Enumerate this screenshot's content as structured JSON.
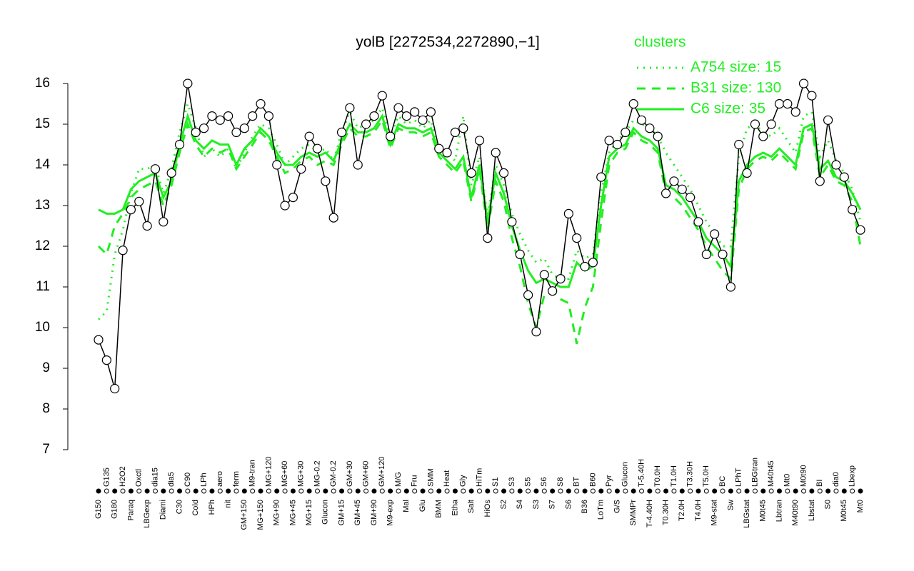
{
  "chart_data": {
    "type": "line",
    "title": "yolB [2272534,2272890,−1]",
    "legend_title": "clusters",
    "legend": "top-right",
    "categories": [
      "G150",
      "G135",
      "G180",
      "H2O2",
      "Paraq",
      "Oxctl",
      "LBGexp",
      "dia15",
      "Diami",
      "dia5",
      "C30",
      "C90",
      "Cold",
      "LPh",
      "HPh",
      "aero",
      "nit",
      "ferm",
      "GM+150",
      "M9-tran",
      "MG+150",
      "MG+120",
      "MG+90",
      "MG+60",
      "MG+45",
      "MG+30",
      "MG+15",
      "MG-0.2",
      "Glucon",
      "GM-0.2",
      "GM+15",
      "GM+30",
      "GM+45",
      "GM+60",
      "GM+90",
      "GM+120",
      "M9-exp",
      "M/G",
      "Mal",
      "Fru",
      "Glu",
      "SMM",
      "BMM",
      "Heat",
      "Etha",
      "Gly",
      "Salt",
      "HiTm",
      "HiOs",
      "S1",
      "S2",
      "S3",
      "S4",
      "S5",
      "S3",
      "S6",
      "S7",
      "S8",
      "S6",
      "BT",
      "B36",
      "B60",
      "LoTm",
      "Pyr",
      "G/S",
      "Glucon",
      "SMMPr",
      "T-5.40H",
      "T-4.40H",
      "T0.0H",
      "T0.30H",
      "T1.0H",
      "T2.0H",
      "T3.30H",
      "T4.0H",
      "T5.0H",
      "M9-stat",
      "BC",
      "Sw",
      "LPhT",
      "LBGstat",
      "LBGtran",
      "M0t45",
      "M40t45",
      "Lbtran",
      "Mt0",
      "M40t90",
      "M0t90",
      "Lbstat",
      "BI",
      "S0",
      "dia0",
      "M0t45",
      "Lbexp",
      "Mt0"
    ],
    "values": [
      9.7,
      9.2,
      8.5,
      11.9,
      12.9,
      13.1,
      12.5,
      13.9,
      12.6,
      13.8,
      14.5,
      16.0,
      14.8,
      14.9,
      15.2,
      15.1,
      15.2,
      14.8,
      14.9,
      15.2,
      15.5,
      15.2,
      14.0,
      13.0,
      13.2,
      13.9,
      14.7,
      14.4,
      13.6,
      12.7,
      14.8,
      15.4,
      14.0,
      15.0,
      15.2,
      15.7,
      14.7,
      15.4,
      15.2,
      15.3,
      15.1,
      15.3,
      14.4,
      14.3,
      14.8,
      14.9,
      13.8,
      14.6,
      12.2,
      14.3,
      13.8,
      12.6,
      11.8,
      10.8,
      9.9,
      11.3,
      10.9,
      11.2,
      12.8,
      12.2,
      11.5,
      11.6,
      13.7,
      14.6,
      14.5,
      14.8,
      15.5,
      15.1,
      14.9,
      14.7,
      13.3,
      13.6,
      13.4,
      13.2,
      12.6,
      11.8,
      12.3,
      11.8,
      11.0,
      14.5,
      13.8,
      15.0,
      14.7,
      15.0,
      15.5,
      15.5,
      15.3,
      16.0,
      15.7,
      13.6,
      15.1,
      14.0,
      13.7,
      12.9,
      12.4
    ],
    "color": "#000000",
    "marker_fill": "#ffffff",
    "series": [
      {
        "name": "A754 size: 15",
        "color": "#22ee22",
        "line_style": "dotted",
        "values": [
          10.2,
          10.4,
          11.8,
          12.4,
          13.3,
          13.9,
          13.9,
          14.0,
          13.3,
          13.9,
          14.8,
          15.5,
          14.9,
          14.2,
          14.4,
          14.2,
          14.4,
          13.9,
          14.3,
          14.7,
          15.0,
          14.9,
          14.5,
          14.0,
          14.2,
          14.4,
          14.5,
          14.3,
          14.4,
          14.1,
          14.8,
          15.3,
          14.9,
          15.0,
          15.1,
          15.4,
          14.7,
          15.2,
          15.0,
          15.1,
          14.9,
          15.1,
          14.4,
          14.3,
          14.1,
          15.2,
          13.5,
          14.2,
          12.7,
          14.0,
          13.5,
          12.8,
          12.3,
          11.9,
          11.6,
          11.7,
          11.3,
          11.2,
          11.2,
          11.9,
          11.7,
          11.8,
          13.3,
          14.3,
          14.6,
          14.8,
          15.1,
          15.0,
          14.9,
          14.7,
          14.3,
          14.0,
          13.7,
          13.4,
          13.0,
          12.6,
          12.3,
          12.0,
          12.0,
          14.2,
          14.9,
          15.0,
          14.8,
          14.7,
          14.9,
          14.6,
          14.3,
          15.2,
          15.3,
          14.2,
          14.6,
          14.1,
          13.8,
          13.4,
          12.6
        ]
      },
      {
        "name": "B31 size: 130",
        "color": "#22ee22",
        "line_style": "dashed",
        "values": [
          12.0,
          11.8,
          12.5,
          12.8,
          13.2,
          13.4,
          13.5,
          13.6,
          13.0,
          13.5,
          14.3,
          15.0,
          14.5,
          14.2,
          14.4,
          14.3,
          14.4,
          13.9,
          14.2,
          14.5,
          14.8,
          14.6,
          14.2,
          13.8,
          13.9,
          14.1,
          14.2,
          14.0,
          14.1,
          14.0,
          14.5,
          14.9,
          14.7,
          14.7,
          14.8,
          15.1,
          14.4,
          14.9,
          14.8,
          14.8,
          14.7,
          14.8,
          14.2,
          14.0,
          13.8,
          14.1,
          13.1,
          13.9,
          12.4,
          13.6,
          13.1,
          12.2,
          11.5,
          10.6,
          10.0,
          10.8,
          10.9,
          10.7,
          10.6,
          9.6,
          10.5,
          11.0,
          12.6,
          14.0,
          14.3,
          14.4,
          14.8,
          14.6,
          14.5,
          14.3,
          13.3,
          13.2,
          13.0,
          12.7,
          12.4,
          12.0,
          11.7,
          11.4,
          11.2,
          13.4,
          13.9,
          14.1,
          14.2,
          14.1,
          14.3,
          14.1,
          13.9,
          14.8,
          14.9,
          13.7,
          14.0,
          13.6,
          13.5,
          13.1,
          12.0
        ]
      },
      {
        "name": "C6 size: 35",
        "color": "#22ee22",
        "line_style": "solid",
        "values": [
          12.9,
          12.8,
          12.8,
          12.9,
          13.4,
          13.6,
          13.7,
          13.8,
          13.2,
          13.6,
          14.5,
          15.2,
          14.6,
          14.4,
          14.6,
          14.5,
          14.5,
          14.0,
          14.4,
          14.6,
          14.9,
          14.7,
          14.3,
          14.0,
          14.0,
          14.2,
          14.3,
          14.2,
          14.3,
          14.1,
          14.6,
          15.0,
          14.8,
          14.8,
          14.9,
          15.2,
          14.5,
          15.0,
          14.9,
          14.9,
          14.8,
          14.9,
          14.3,
          14.1,
          13.9,
          14.2,
          13.2,
          14.0,
          12.6,
          13.8,
          13.3,
          12.5,
          11.9,
          11.4,
          11.1,
          11.2,
          11.1,
          11.0,
          11.0,
          11.6,
          11.4,
          11.5,
          13.0,
          14.2,
          14.4,
          14.5,
          14.9,
          14.7,
          14.6,
          14.4,
          13.5,
          13.4,
          13.2,
          12.9,
          12.6,
          12.2,
          12.0,
          11.8,
          11.5,
          13.6,
          14.0,
          14.2,
          14.3,
          14.2,
          14.4,
          14.2,
          14.0,
          14.9,
          15.0,
          13.9,
          14.1,
          13.7,
          13.6,
          13.3,
          12.9
        ]
      }
    ],
    "ylim": [
      7,
      16
    ],
    "yticks": [
      7,
      8,
      9,
      10,
      11,
      12,
      13,
      14,
      15,
      16
    ]
  }
}
